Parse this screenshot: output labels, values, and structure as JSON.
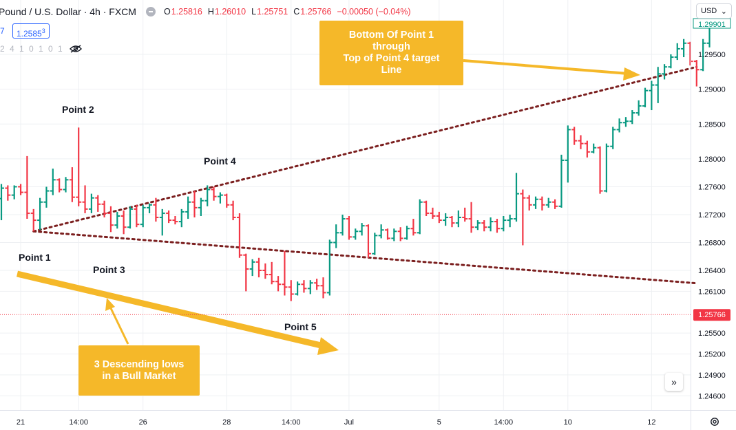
{
  "header": {
    "symbol_title": "Pound / U.S. Dollar · 4h · FXCM",
    "ohlc": {
      "open_key": "O",
      "open": "1.25816",
      "high_key": "H",
      "high": "1.26010",
      "low_key": "L",
      "low": "1.25751",
      "close_key": "C",
      "close": "1.25766",
      "change": "−0.00050 (−0.04%)"
    },
    "row2_lead": "7",
    "price_box_main": "1.2585",
    "price_box_sup": "3",
    "indicator_values": "2 4 1 0 1 0 1"
  },
  "currency_selector": {
    "label": "USD"
  },
  "colors": {
    "up": "#089981",
    "down": "#f23645",
    "trendline": "#7b1f1f",
    "annotation": "#f5b829",
    "last_price": "#f23645",
    "grid": "#eef0f3"
  },
  "annotations": {
    "box_top_line1": "Bottom Of Point 1",
    "box_top_line2": "through",
    "box_top_line3": "Top of Point 4 target",
    "box_top_line4": "Line",
    "box_bottom_line1": "3 Descending lows",
    "box_bottom_line2": "in a Bull Market",
    "point1": "Point 1",
    "point2": "Point 2",
    "point3": "Point 3",
    "point4": "Point 4",
    "point5": "Point 5"
  },
  "chart_data": {
    "type": "ohlc",
    "ylim": [
      1.2445,
      1.3015
    ],
    "y_ticks": [
      "1.29500",
      "1.29000",
      "1.28500",
      "1.28000",
      "1.27600",
      "1.27200",
      "1.26800",
      "1.26400",
      "1.26100",
      "1.25500",
      "1.25200",
      "1.24900",
      "1.24600"
    ],
    "x_tick_labels": [
      "21",
      "14:00",
      "26",
      "28",
      "14:00",
      "Jul",
      "5",
      "14:00",
      "10",
      "12"
    ],
    "x_tick_bar_index": [
      3,
      12,
      22,
      35,
      45,
      54,
      68,
      78,
      88,
      101
    ],
    "last_price": "1.25766",
    "partial_top_label": "1.29901",
    "grid": true,
    "bars": [
      {
        "o": 1.2743,
        "h": 1.2764,
        "l": 1.2712,
        "c": 1.2758
      },
      {
        "o": 1.2758,
        "h": 1.2762,
        "l": 1.274,
        "c": 1.2748
      },
      {
        "o": 1.2748,
        "h": 1.2762,
        "l": 1.2742,
        "c": 1.276
      },
      {
        "o": 1.276,
        "h": 1.2764,
        "l": 1.2748,
        "c": 1.2752
      },
      {
        "o": 1.2752,
        "h": 1.2804,
        "l": 1.2714,
        "c": 1.2722
      },
      {
        "o": 1.2722,
        "h": 1.2728,
        "l": 1.2696,
        "c": 1.2712
      },
      {
        "o": 1.2712,
        "h": 1.2744,
        "l": 1.2698,
        "c": 1.2738
      },
      {
        "o": 1.2738,
        "h": 1.276,
        "l": 1.273,
        "c": 1.2754
      },
      {
        "o": 1.2754,
        "h": 1.2786,
        "l": 1.2748,
        "c": 1.277
      },
      {
        "o": 1.277,
        "h": 1.2772,
        "l": 1.2752,
        "c": 1.2756
      },
      {
        "o": 1.2756,
        "h": 1.2774,
        "l": 1.2752,
        "c": 1.277
      },
      {
        "o": 1.277,
        "h": 1.2788,
        "l": 1.2738,
        "c": 1.2745
      },
      {
        "o": 1.2745,
        "h": 1.2845,
        "l": 1.2732,
        "c": 1.2738
      },
      {
        "o": 1.2738,
        "h": 1.2762,
        "l": 1.2722,
        "c": 1.2728
      },
      {
        "o": 1.2728,
        "h": 1.275,
        "l": 1.2722,
        "c": 1.2744
      },
      {
        "o": 1.2744,
        "h": 1.2748,
        "l": 1.2724,
        "c": 1.2735
      },
      {
        "o": 1.2735,
        "h": 1.274,
        "l": 1.2716,
        "c": 1.2722
      },
      {
        "o": 1.2722,
        "h": 1.2732,
        "l": 1.2695,
        "c": 1.2705
      },
      {
        "o": 1.2705,
        "h": 1.2724,
        "l": 1.27,
        "c": 1.2718
      },
      {
        "o": 1.2718,
        "h": 1.2726,
        "l": 1.2692,
        "c": 1.2702
      },
      {
        "o": 1.2702,
        "h": 1.2732,
        "l": 1.27,
        "c": 1.2728
      },
      {
        "o": 1.2728,
        "h": 1.2734,
        "l": 1.2702,
        "c": 1.2706
      },
      {
        "o": 1.2706,
        "h": 1.2734,
        "l": 1.2702,
        "c": 1.273
      },
      {
        "o": 1.273,
        "h": 1.2736,
        "l": 1.2722,
        "c": 1.2734
      },
      {
        "o": 1.2734,
        "h": 1.2744,
        "l": 1.271,
        "c": 1.2716
      },
      {
        "o": 1.2716,
        "h": 1.2728,
        "l": 1.269,
        "c": 1.2722
      },
      {
        "o": 1.2722,
        "h": 1.2726,
        "l": 1.2708,
        "c": 1.2712
      },
      {
        "o": 1.2712,
        "h": 1.2718,
        "l": 1.2706,
        "c": 1.271
      },
      {
        "o": 1.271,
        "h": 1.2728,
        "l": 1.2702,
        "c": 1.2724
      },
      {
        "o": 1.2724,
        "h": 1.2746,
        "l": 1.2714,
        "c": 1.2738
      },
      {
        "o": 1.2738,
        "h": 1.2754,
        "l": 1.2716,
        "c": 1.273
      },
      {
        "o": 1.273,
        "h": 1.2744,
        "l": 1.2718,
        "c": 1.274
      },
      {
        "o": 1.274,
        "h": 1.2762,
        "l": 1.2732,
        "c": 1.2756
      },
      {
        "o": 1.2756,
        "h": 1.276,
        "l": 1.274,
        "c": 1.2746
      },
      {
        "o": 1.2746,
        "h": 1.2752,
        "l": 1.2736,
        "c": 1.2748
      },
      {
        "o": 1.2748,
        "h": 1.275,
        "l": 1.273,
        "c": 1.2734
      },
      {
        "o": 1.2734,
        "h": 1.274,
        "l": 1.2712,
        "c": 1.2716
      },
      {
        "o": 1.2716,
        "h": 1.2722,
        "l": 1.2658,
        "c": 1.2662
      },
      {
        "o": 1.2662,
        "h": 1.2664,
        "l": 1.261,
        "c": 1.2642
      },
      {
        "o": 1.2642,
        "h": 1.2656,
        "l": 1.2632,
        "c": 1.2652
      },
      {
        "o": 1.2652,
        "h": 1.2658,
        "l": 1.263,
        "c": 1.264
      },
      {
        "o": 1.264,
        "h": 1.265,
        "l": 1.2628,
        "c": 1.2634
      },
      {
        "o": 1.2634,
        "h": 1.2652,
        "l": 1.262,
        "c": 1.2624
      },
      {
        "o": 1.2624,
        "h": 1.2632,
        "l": 1.261,
        "c": 1.262
      },
      {
        "o": 1.262,
        "h": 1.2668,
        "l": 1.2604,
        "c": 1.2616
      },
      {
        "o": 1.2616,
        "h": 1.2626,
        "l": 1.2596,
        "c": 1.2606
      },
      {
        "o": 1.2606,
        "h": 1.2624,
        "l": 1.2604,
        "c": 1.262
      },
      {
        "o": 1.262,
        "h": 1.2626,
        "l": 1.2608,
        "c": 1.2614
      },
      {
        "o": 1.2614,
        "h": 1.2626,
        "l": 1.2606,
        "c": 1.2622
      },
      {
        "o": 1.2622,
        "h": 1.2628,
        "l": 1.2612,
        "c": 1.2618
      },
      {
        "o": 1.2618,
        "h": 1.263,
        "l": 1.26,
        "c": 1.2608
      },
      {
        "o": 1.2608,
        "h": 1.2684,
        "l": 1.2604,
        "c": 1.268
      },
      {
        "o": 1.268,
        "h": 1.2706,
        "l": 1.2672,
        "c": 1.2694
      },
      {
        "o": 1.2694,
        "h": 1.272,
        "l": 1.269,
        "c": 1.2714
      },
      {
        "o": 1.2714,
        "h": 1.2718,
        "l": 1.2684,
        "c": 1.2688
      },
      {
        "o": 1.2688,
        "h": 1.27,
        "l": 1.2684,
        "c": 1.2696
      },
      {
        "o": 1.2696,
        "h": 1.2708,
        "l": 1.269,
        "c": 1.2704
      },
      {
        "o": 1.2704,
        "h": 1.2706,
        "l": 1.2658,
        "c": 1.2664
      },
      {
        "o": 1.2664,
        "h": 1.2694,
        "l": 1.2662,
        "c": 1.269
      },
      {
        "o": 1.269,
        "h": 1.2706,
        "l": 1.2686,
        "c": 1.2698
      },
      {
        "o": 1.2698,
        "h": 1.27,
        "l": 1.2684,
        "c": 1.2686
      },
      {
        "o": 1.2686,
        "h": 1.27,
        "l": 1.2682,
        "c": 1.2696
      },
      {
        "o": 1.2696,
        "h": 1.2702,
        "l": 1.2682,
        "c": 1.2686
      },
      {
        "o": 1.2686,
        "h": 1.2704,
        "l": 1.2684,
        "c": 1.27
      },
      {
        "o": 1.27,
        "h": 1.2714,
        "l": 1.269,
        "c": 1.2694
      },
      {
        "o": 1.2694,
        "h": 1.2742,
        "l": 1.2692,
        "c": 1.2738
      },
      {
        "o": 1.2738,
        "h": 1.274,
        "l": 1.2718,
        "c": 1.2722
      },
      {
        "o": 1.2722,
        "h": 1.273,
        "l": 1.2714,
        "c": 1.2718
      },
      {
        "o": 1.2718,
        "h": 1.2724,
        "l": 1.2708,
        "c": 1.2712
      },
      {
        "o": 1.2712,
        "h": 1.2722,
        "l": 1.2704,
        "c": 1.2716
      },
      {
        "o": 1.2716,
        "h": 1.2718,
        "l": 1.2702,
        "c": 1.2708
      },
      {
        "o": 1.2708,
        "h": 1.2726,
        "l": 1.2702,
        "c": 1.2716
      },
      {
        "o": 1.2716,
        "h": 1.273,
        "l": 1.271,
        "c": 1.2714
      },
      {
        "o": 1.2714,
        "h": 1.2738,
        "l": 1.2694,
        "c": 1.2702
      },
      {
        "o": 1.2702,
        "h": 1.2712,
        "l": 1.2698,
        "c": 1.2708
      },
      {
        "o": 1.2708,
        "h": 1.2712,
        "l": 1.2696,
        "c": 1.2702
      },
      {
        "o": 1.2702,
        "h": 1.2716,
        "l": 1.2696,
        "c": 1.271
      },
      {
        "o": 1.271,
        "h": 1.2714,
        "l": 1.2694,
        "c": 1.27
      },
      {
        "o": 1.27,
        "h": 1.2718,
        "l": 1.2696,
        "c": 1.2712
      },
      {
        "o": 1.2712,
        "h": 1.272,
        "l": 1.2702,
        "c": 1.2714
      },
      {
        "o": 1.2714,
        "h": 1.278,
        "l": 1.271,
        "c": 1.275
      },
      {
        "o": 1.275,
        "h": 1.2756,
        "l": 1.2676,
        "c": 1.2744
      },
      {
        "o": 1.2744,
        "h": 1.2748,
        "l": 1.2726,
        "c": 1.2734
      },
      {
        "o": 1.2734,
        "h": 1.2746,
        "l": 1.2728,
        "c": 1.2742
      },
      {
        "o": 1.2742,
        "h": 1.2746,
        "l": 1.2726,
        "c": 1.2734
      },
      {
        "o": 1.2734,
        "h": 1.2744,
        "l": 1.273,
        "c": 1.2738
      },
      {
        "o": 1.2738,
        "h": 1.2742,
        "l": 1.2728,
        "c": 1.2732
      },
      {
        "o": 1.2732,
        "h": 1.2806,
        "l": 1.273,
        "c": 1.2798
      },
      {
        "o": 1.2798,
        "h": 1.2848,
        "l": 1.2766,
        "c": 1.2842
      },
      {
        "o": 1.2842,
        "h": 1.2846,
        "l": 1.282,
        "c": 1.2826
      },
      {
        "o": 1.2826,
        "h": 1.2834,
        "l": 1.2814,
        "c": 1.2822
      },
      {
        "o": 1.2822,
        "h": 1.2826,
        "l": 1.2802,
        "c": 1.281
      },
      {
        "o": 1.281,
        "h": 1.2822,
        "l": 1.2808,
        "c": 1.2816
      },
      {
        "o": 1.2816,
        "h": 1.2818,
        "l": 1.275,
        "c": 1.2754
      },
      {
        "o": 1.2754,
        "h": 1.2822,
        "l": 1.2752,
        "c": 1.2818
      },
      {
        "o": 1.2818,
        "h": 1.2846,
        "l": 1.2814,
        "c": 1.2842
      },
      {
        "o": 1.2842,
        "h": 1.2858,
        "l": 1.2838,
        "c": 1.2852
      },
      {
        "o": 1.2852,
        "h": 1.286,
        "l": 1.2846,
        "c": 1.2854
      },
      {
        "o": 1.2854,
        "h": 1.287,
        "l": 1.285,
        "c": 1.2866
      },
      {
        "o": 1.2866,
        "h": 1.2884,
        "l": 1.2862,
        "c": 1.2876
      },
      {
        "o": 1.2876,
        "h": 1.2902,
        "l": 1.2874,
        "c": 1.2898
      },
      {
        "o": 1.2898,
        "h": 1.2912,
        "l": 1.287,
        "c": 1.2906
      },
      {
        "o": 1.2906,
        "h": 1.2932,
        "l": 1.288,
        "c": 1.2922
      },
      {
        "o": 1.2922,
        "h": 1.2936,
        "l": 1.2914,
        "c": 1.2932
      },
      {
        "o": 1.2932,
        "h": 1.295,
        "l": 1.293,
        "c": 1.2946
      },
      {
        "o": 1.2946,
        "h": 1.2966,
        "l": 1.2942,
        "c": 1.2958
      },
      {
        "o": 1.2958,
        "h": 1.2972,
        "l": 1.2946,
        "c": 1.2966
      },
      {
        "o": 1.2966,
        "h": 1.2968,
        "l": 1.2934,
        "c": 1.294
      },
      {
        "o": 1.294,
        "h": 1.2942,
        "l": 1.2904,
        "c": 1.2928
      },
      {
        "o": 1.2928,
        "h": 1.2972,
        "l": 1.2926,
        "c": 1.2966
      },
      {
        "o": 1.2966,
        "h": 1.2995,
        "l": 1.296,
        "c": 1.299
      }
    ],
    "trendlines": [
      {
        "name": "upper-target-line",
        "from": {
          "bar": 5,
          "price": 1.2696
        },
        "to": {
          "bar": 108,
          "price": 1.2932
        }
      },
      {
        "name": "lower-lows-line",
        "from": {
          "bar": 5,
          "price": 1.2696
        },
        "to": {
          "bar": 108,
          "price": 1.26215
        }
      }
    ]
  }
}
